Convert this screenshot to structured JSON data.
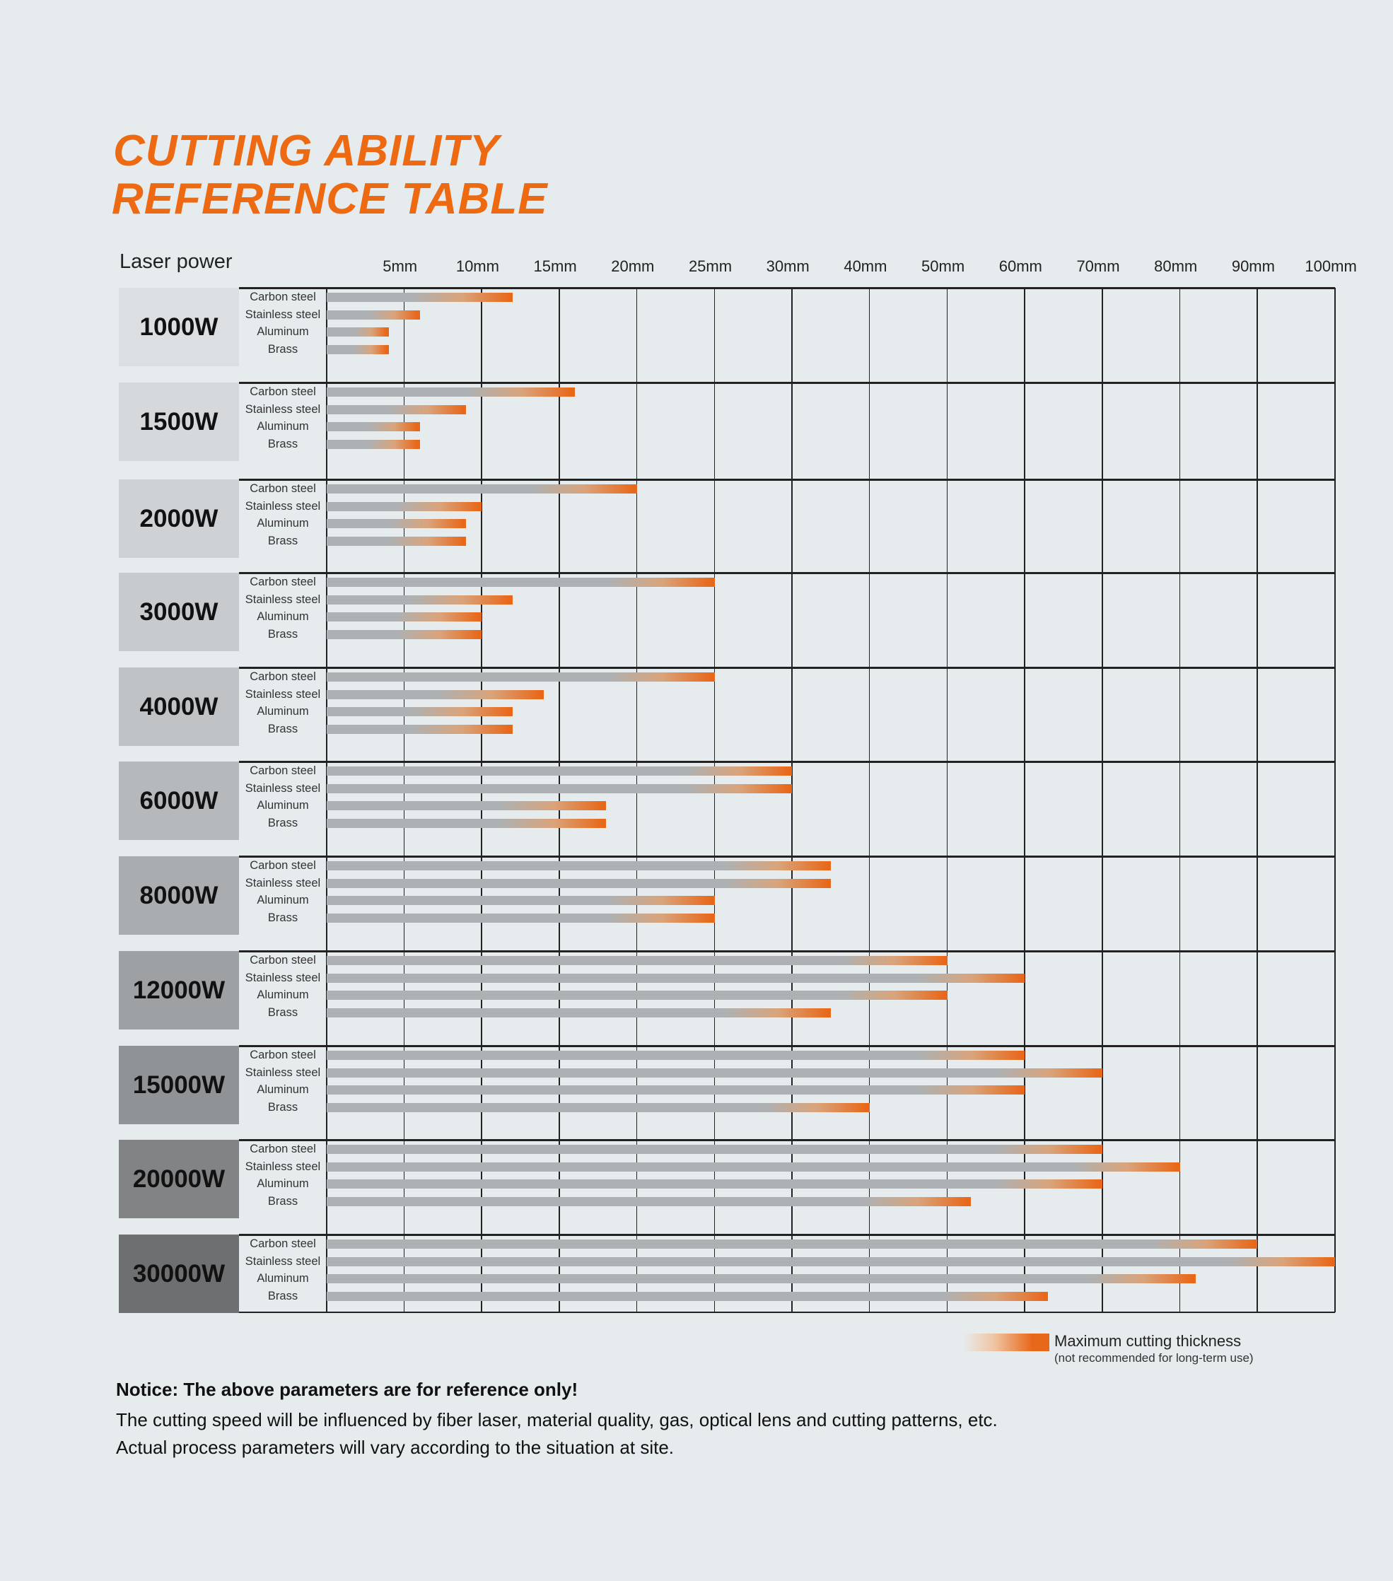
{
  "title_lines": [
    "CUTTING ABILITY",
    "REFERENCE TABLE"
  ],
  "colors": {
    "accent": "#ee6a12",
    "bar_base": "#adb1b3",
    "bar_max": "#e8681a",
    "background": "#e6ebed"
  },
  "chart_data": {
    "type": "bar",
    "orientation": "horizontal",
    "row_label": "Laser power",
    "x_tick_labels": [
      "5mm",
      "10mm",
      "15mm",
      "20mm",
      "25mm",
      "30mm",
      "40mm",
      "50mm",
      "60mm",
      "70mm",
      "80mm",
      "90mm",
      "100mm"
    ],
    "x_ticks": [
      0,
      5,
      10,
      15,
      20,
      25,
      30,
      40,
      50,
      60,
      70,
      80,
      90,
      100
    ],
    "x_scale": "piecewise (5mm steps to 30mm, then 10mm steps)",
    "xlim": [
      0,
      100
    ],
    "unit": "mm",
    "grid": true,
    "materials": [
      "Carbon steel",
      "Stainless steel",
      "Aluminum",
      "Brass"
    ],
    "groups": [
      {
        "power": "1000W",
        "shade": "#dcdfe1",
        "values": [
          12,
          6,
          4,
          4
        ]
      },
      {
        "power": "1500W",
        "shade": "#d6d9db",
        "values": [
          16,
          9,
          6,
          6
        ]
      },
      {
        "power": "2000W",
        "shade": "#cfd2d4",
        "values": [
          20,
          10,
          9,
          9
        ]
      },
      {
        "power": "3000W",
        "shade": "#c8cbcd",
        "values": [
          25,
          12,
          10,
          10
        ]
      },
      {
        "power": "4000W",
        "shade": "#c0c3c5",
        "values": [
          25,
          14,
          12,
          12
        ]
      },
      {
        "power": "6000W",
        "shade": "#b6b9bb",
        "values": [
          30,
          30,
          18,
          18
        ]
      },
      {
        "power": "8000W",
        "shade": "#aaadaf",
        "values": [
          35,
          35,
          25,
          25
        ]
      },
      {
        "power": "12000W",
        "shade": "#9ea1a3",
        "values": [
          50,
          60,
          50,
          35
        ]
      },
      {
        "power": "15000W",
        "shade": "#909395",
        "values": [
          60,
          70,
          60,
          40
        ]
      },
      {
        "power": "20000W",
        "shade": "#818385",
        "values": [
          70,
          80,
          70,
          53
        ]
      },
      {
        "power": "30000W",
        "shade": "#6e6f71",
        "values": [
          90,
          100,
          82,
          63
        ]
      }
    ],
    "legend": {
      "label": "Maximum cutting thickness",
      "sublabel": "(not recommended for long-term use)",
      "placement": "bottom-right"
    }
  },
  "notice": {
    "heading": "Notice: The above parameters are for reference only!",
    "line1": "The cutting speed will be influenced by fiber laser, material quality, gas, optical lens and cutting patterns, etc.",
    "line2": "Actual process parameters will vary according to the situation at site."
  }
}
